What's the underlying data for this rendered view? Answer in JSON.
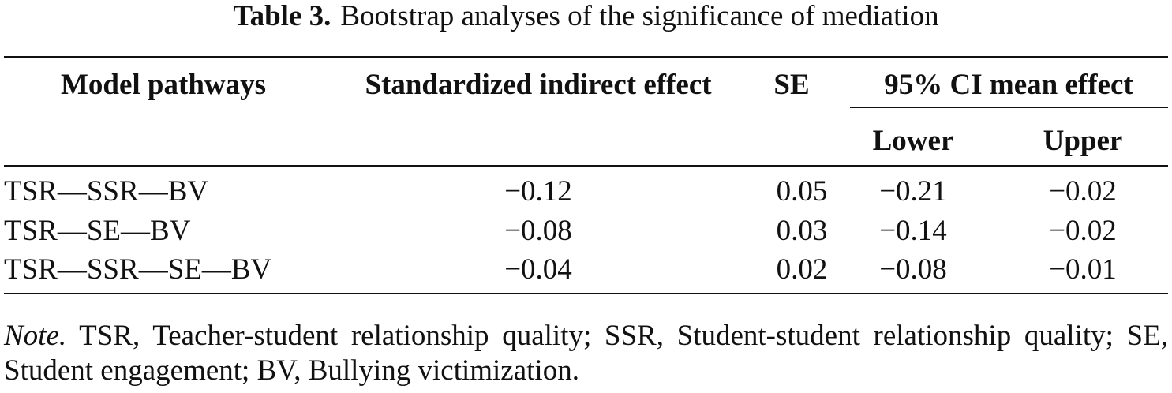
{
  "caption": {
    "label": "Table 3.",
    "title": "Bootstrap analyses of the significance of mediation"
  },
  "table": {
    "headers": {
      "pathway": "Model pathways",
      "indirect": "Standardized indirect effect",
      "se": "SE",
      "ci": "95% CI mean effect",
      "lower": "Lower",
      "upper": "Upper"
    },
    "rows": [
      {
        "pathway": "TSR—SSR—BV",
        "indirect": "−0.12",
        "se": "0.05",
        "lower": "−0.21",
        "upper": "−0.02"
      },
      {
        "pathway": "TSR—SE—BV",
        "indirect": "−0.08",
        "se": "0.03",
        "lower": "−0.14",
        "upper": "−0.02"
      },
      {
        "pathway": "TSR—SSR—SE—BV",
        "indirect": "−0.04",
        "se": "0.02",
        "lower": "−0.08",
        "upper": "−0.01"
      }
    ]
  },
  "note": {
    "label": "Note.",
    "text": "TSR, Teacher-student relationship quality; SSR, Student-student relationship quality; SE, Student engagement; BV, Bullying victimization."
  }
}
